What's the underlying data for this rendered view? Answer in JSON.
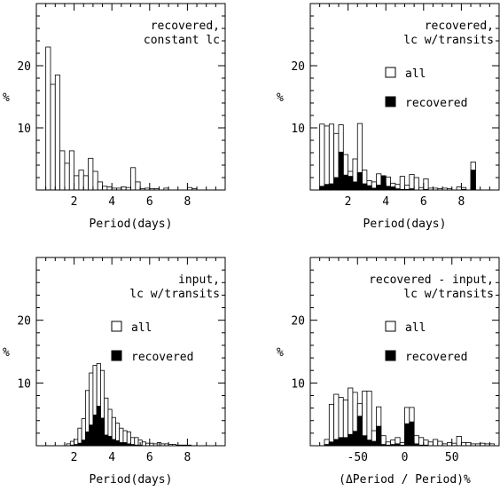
{
  "chart_data": [
    {
      "id": "p1",
      "type": "bar",
      "annotation": [
        "recovered,",
        "constant lc"
      ],
      "xlabel": "Period(days)",
      "ylabel": "%",
      "xlim": [
        0,
        10
      ],
      "ylim": [
        0,
        30
      ],
      "xticks": [
        "2",
        "4",
        "6",
        "8"
      ],
      "yticks": [
        "10",
        "20"
      ],
      "bin_width": 0.25,
      "legend": [],
      "series": [
        {
          "fill": "open",
          "x": [
            0.5,
            0.75,
            1.0,
            1.25,
            1.5,
            1.75,
            2.0,
            2.25,
            2.5,
            2.75,
            3.0,
            3.25,
            3.5,
            3.75,
            4.0,
            4.25,
            4.5,
            4.75,
            5.0,
            5.25,
            5.5,
            5.75,
            6.0,
            6.25,
            6.5,
            6.75,
            7.0,
            7.25,
            7.5,
            7.75,
            8.0,
            8.25
          ],
          "values": [
            23.0,
            17.0,
            18.5,
            6.3,
            4.3,
            6.3,
            2.3,
            3.2,
            2.3,
            5.1,
            3.0,
            1.3,
            0.6,
            0.5,
            0.3,
            0.3,
            0.5,
            0.4,
            3.6,
            1.3,
            0.2,
            0.3,
            0.2,
            0.2,
            0.0,
            0.3,
            0.0,
            0.0,
            0.0,
            0.0,
            0.4,
            0.2
          ]
        }
      ]
    },
    {
      "id": "p2",
      "type": "bar",
      "annotation": [
        "recovered,",
        "lc w/transits"
      ],
      "xlabel": "Period(days)",
      "ylabel": "%",
      "xlim": [
        0,
        10
      ],
      "ylim": [
        0,
        30
      ],
      "xticks": [
        "2",
        "4",
        "6",
        "8"
      ],
      "yticks": [
        "10",
        "20"
      ],
      "bin_width": 0.25,
      "legend": [
        {
          "label": "all",
          "fill": "open"
        },
        {
          "label": "recovered",
          "fill": "solid"
        }
      ],
      "series": [
        {
          "name": "all",
          "fill": "open",
          "x": [
            0.5,
            0.75,
            1.0,
            1.25,
            1.5,
            1.75,
            2.0,
            2.25,
            2.5,
            2.75,
            3.0,
            3.25,
            3.5,
            3.75,
            4.0,
            4.25,
            4.5,
            4.75,
            5.0,
            5.25,
            5.5,
            5.75,
            6.0,
            6.25,
            6.5,
            6.75,
            7.0,
            7.25,
            7.5,
            7.75,
            8.0,
            8.25,
            8.5
          ],
          "values": [
            10.6,
            10.3,
            10.6,
            9.1,
            10.5,
            5.7,
            3.0,
            5.0,
            10.7,
            3.2,
            1.5,
            1.3,
            2.6,
            1.9,
            2.1,
            1.1,
            0.9,
            2.2,
            0.8,
            2.5,
            2.0,
            0.4,
            1.8,
            0.3,
            0.3,
            0.2,
            0.3,
            0.2,
            0.0,
            0.5,
            0.4,
            0.0,
            4.5
          ]
        },
        {
          "name": "recovered",
          "fill": "solid",
          "x": [
            0.5,
            0.75,
            1.0,
            1.25,
            1.5,
            1.75,
            2.0,
            2.25,
            2.5,
            2.75,
            3.0,
            3.25,
            3.5,
            3.75,
            4.0,
            4.25,
            4.5,
            4.75,
            5.0,
            5.25,
            5.5,
            5.75,
            6.0,
            6.25,
            6.5,
            6.75,
            7.0,
            7.25,
            7.5,
            7.75,
            8.0,
            8.25,
            8.5
          ],
          "values": [
            0.6,
            0.9,
            1.0,
            2.0,
            6.1,
            2.4,
            2.2,
            1.3,
            2.8,
            1.0,
            0.7,
            0.3,
            0.8,
            2.3,
            0.6,
            0.5,
            0.2,
            0.1,
            0.1,
            0.2,
            0.0,
            0.0,
            0.1,
            0.0,
            0.0,
            0.0,
            0.0,
            0.0,
            0.0,
            0.0,
            0.1,
            0.0,
            3.2
          ]
        }
      ]
    },
    {
      "id": "p3",
      "type": "bar",
      "annotation": [
        "input,",
        "lc w/transits"
      ],
      "xlabel": "Period(days)",
      "ylabel": "%",
      "xlim": [
        0,
        10
      ],
      "ylim": [
        0,
        30
      ],
      "xticks": [
        "2",
        "4",
        "6",
        "8"
      ],
      "yticks": [
        "10",
        "20"
      ],
      "bin_width": 0.2,
      "legend": [
        {
          "label": "all",
          "fill": "open"
        },
        {
          "label": "recovered",
          "fill": "solid"
        }
      ],
      "series": [
        {
          "name": "all",
          "fill": "open",
          "x": [
            1.6,
            1.8,
            2.0,
            2.2,
            2.4,
            2.6,
            2.8,
            3.0,
            3.2,
            3.4,
            3.6,
            3.8,
            4.0,
            4.2,
            4.4,
            4.6,
            4.8,
            5.0,
            5.2,
            5.4,
            5.6,
            5.8,
            6.0,
            6.2,
            6.4,
            6.6,
            6.8,
            7.0,
            7.2,
            7.4,
            7.6,
            7.8,
            8.0
          ],
          "values": [
            0.3,
            0.7,
            1.0,
            2.8,
            4.3,
            8.8,
            11.6,
            12.8,
            13.1,
            12.0,
            7.6,
            5.8,
            4.5,
            3.6,
            2.8,
            2.4,
            2.2,
            1.3,
            1.3,
            0.9,
            0.6,
            0.4,
            0.4,
            0.3,
            0.5,
            0.3,
            0.3,
            0.2,
            0.2,
            0.1,
            0.1,
            0.1,
            0.1
          ]
        },
        {
          "name": "recovered",
          "fill": "solid",
          "x": [
            1.6,
            1.8,
            2.0,
            2.2,
            2.4,
            2.6,
            2.8,
            3.0,
            3.2,
            3.4,
            3.6,
            3.8,
            4.0,
            4.2,
            4.4,
            4.6,
            4.8,
            5.0,
            5.2,
            5.4,
            5.6,
            5.8,
            6.0
          ],
          "values": [
            0.0,
            0.1,
            0.2,
            0.4,
            0.9,
            2.2,
            3.3,
            4.9,
            6.3,
            4.4,
            1.7,
            1.5,
            1.0,
            0.8,
            0.5,
            0.5,
            0.3,
            0.2,
            0.1,
            0.1,
            0.0,
            0.0,
            0.0
          ]
        }
      ]
    },
    {
      "id": "p4",
      "type": "bar",
      "annotation": [
        "recovered - input,",
        "lc w/transits"
      ],
      "xlabel": "(ΔPeriod / Period)%",
      "ylabel": "%",
      "xlim": [
        -100,
        100
      ],
      "ylim": [
        0,
        30
      ],
      "xticks": [
        "-50",
        "0",
        "50"
      ],
      "yticks": [
        "10",
        "20"
      ],
      "bin_width": 5,
      "legend": [
        {
          "label": "all",
          "fill": "open"
        },
        {
          "label": "recovered",
          "fill": "solid"
        }
      ],
      "series": [
        {
          "name": "all",
          "fill": "open",
          "x": [
            -85,
            -80,
            -75,
            -70,
            -65,
            -60,
            -55,
            -50,
            -45,
            -40,
            -35,
            -30,
            -25,
            -20,
            -15,
            -10,
            -5,
            0,
            5,
            10,
            15,
            20,
            25,
            30,
            35,
            40,
            45,
            50,
            55,
            60,
            65,
            70,
            75,
            80,
            85,
            90
          ],
          "values": [
            1.0,
            6.6,
            8.2,
            7.7,
            7.3,
            9.2,
            8.5,
            6.7,
            8.7,
            8.7,
            2.4,
            6.2,
            1.6,
            0.6,
            0.9,
            1.3,
            0.5,
            6.1,
            6.1,
            1.6,
            1.3,
            0.9,
            0.6,
            1.0,
            0.7,
            0.3,
            0.5,
            0.4,
            1.5,
            0.5,
            0.5,
            0.3,
            0.3,
            0.4,
            0.3,
            0.3
          ]
        },
        {
          "name": "recovered",
          "fill": "solid",
          "x": [
            -85,
            -80,
            -75,
            -70,
            -65,
            -60,
            -55,
            -50,
            -45,
            -40,
            -35,
            -30,
            -25,
            -20,
            -15,
            -10,
            -5,
            0,
            5,
            10,
            15,
            20
          ],
          "values": [
            0.2,
            0.6,
            1.0,
            1.3,
            1.3,
            1.8,
            2.3,
            4.7,
            1.6,
            0.9,
            0.7,
            3.1,
            0.2,
            0.1,
            0.2,
            0.3,
            0.1,
            3.5,
            3.8,
            0.3,
            0.1,
            0.1
          ]
        }
      ]
    }
  ]
}
